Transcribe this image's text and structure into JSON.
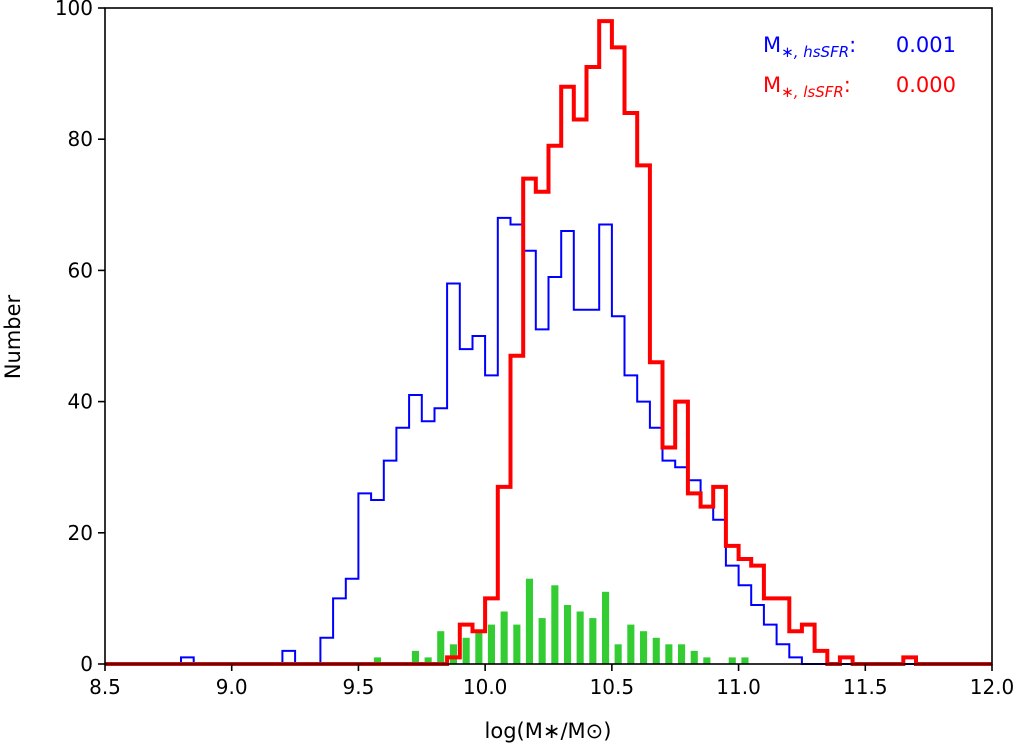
{
  "chart_data": {
    "type": "histogram",
    "xlabel": "log(M∗/M⊙)",
    "ylabel": "Number",
    "xlim": [
      8.5,
      12.0
    ],
    "ylim": [
      0,
      100
    ],
    "xticks": [
      "8.5",
      "9.0",
      "9.5",
      "10.0",
      "10.5",
      "11.0",
      "11.5",
      "12.0"
    ],
    "yticks": [
      "0",
      "20",
      "40",
      "60",
      "80",
      "100"
    ],
    "bin_width": 0.05,
    "grid": false,
    "series": [
      {
        "key": "hsSFR",
        "color": "#0000ff",
        "style": "step",
        "bins": [
          [
            8.8,
            1
          ],
          [
            9.2,
            2
          ],
          [
            9.35,
            4
          ],
          [
            9.4,
            10
          ],
          [
            9.45,
            13
          ],
          [
            9.5,
            26
          ],
          [
            9.55,
            25
          ],
          [
            9.6,
            31
          ],
          [
            9.65,
            36
          ],
          [
            9.7,
            41
          ],
          [
            9.75,
            37
          ],
          [
            9.8,
            39
          ],
          [
            9.85,
            58
          ],
          [
            9.9,
            48
          ],
          [
            9.95,
            50
          ],
          [
            10.0,
            44
          ],
          [
            10.05,
            68
          ],
          [
            10.1,
            67
          ],
          [
            10.15,
            63
          ],
          [
            10.2,
            51
          ],
          [
            10.25,
            59
          ],
          [
            10.3,
            66
          ],
          [
            10.35,
            54
          ],
          [
            10.4,
            54
          ],
          [
            10.45,
            67
          ],
          [
            10.5,
            53
          ],
          [
            10.55,
            44
          ],
          [
            10.6,
            40
          ],
          [
            10.65,
            36
          ],
          [
            10.7,
            31
          ],
          [
            10.75,
            30
          ],
          [
            10.8,
            28
          ],
          [
            10.85,
            24
          ],
          [
            10.9,
            22
          ],
          [
            10.95,
            15
          ],
          [
            11.0,
            12
          ],
          [
            11.05,
            9
          ],
          [
            11.1,
            6
          ],
          [
            11.15,
            3
          ],
          [
            11.2,
            1
          ],
          [
            11.25,
            0
          ]
        ]
      },
      {
        "key": "lsSFR",
        "color": "#ff0000",
        "style": "step-bold",
        "bins": [
          [
            9.85,
            1
          ],
          [
            9.9,
            6
          ],
          [
            9.95,
            5
          ],
          [
            10.0,
            10
          ],
          [
            10.05,
            27
          ],
          [
            10.1,
            47
          ],
          [
            10.15,
            74
          ],
          [
            10.2,
            72
          ],
          [
            10.25,
            79
          ],
          [
            10.3,
            88
          ],
          [
            10.35,
            83
          ],
          [
            10.4,
            91
          ],
          [
            10.45,
            98
          ],
          [
            10.5,
            94
          ],
          [
            10.55,
            84
          ],
          [
            10.6,
            76
          ],
          [
            10.65,
            46
          ],
          [
            10.7,
            33
          ],
          [
            10.75,
            40
          ],
          [
            10.8,
            26
          ],
          [
            10.85,
            24
          ],
          [
            10.9,
            27
          ],
          [
            10.95,
            18
          ],
          [
            11.0,
            16
          ],
          [
            11.05,
            15
          ],
          [
            11.1,
            10
          ],
          [
            11.15,
            10
          ],
          [
            11.2,
            5
          ],
          [
            11.25,
            6
          ],
          [
            11.3,
            2
          ],
          [
            11.35,
            0
          ],
          [
            11.4,
            1
          ],
          [
            11.45,
            0
          ],
          [
            11.65,
            1
          ],
          [
            11.7,
            0
          ]
        ]
      },
      {
        "key": "difference",
        "color": "#33cc33",
        "style": "bar",
        "bins": [
          [
            9.55,
            1
          ],
          [
            9.7,
            2
          ],
          [
            9.75,
            1
          ],
          [
            9.8,
            5
          ],
          [
            9.85,
            3
          ],
          [
            9.9,
            4
          ],
          [
            9.95,
            5
          ],
          [
            10.0,
            6
          ],
          [
            10.05,
            8
          ],
          [
            10.1,
            6
          ],
          [
            10.15,
            13
          ],
          [
            10.2,
            7
          ],
          [
            10.25,
            12
          ],
          [
            10.3,
            9
          ],
          [
            10.35,
            8
          ],
          [
            10.4,
            7
          ],
          [
            10.45,
            11
          ],
          [
            10.5,
            3
          ],
          [
            10.55,
            6
          ],
          [
            10.6,
            5
          ],
          [
            10.65,
            4
          ],
          [
            10.7,
            3
          ],
          [
            10.75,
            3
          ],
          [
            10.8,
            2
          ],
          [
            10.85,
            1
          ],
          [
            10.95,
            1
          ],
          [
            11.0,
            1
          ]
        ]
      }
    ],
    "annotations": [
      {
        "key": "hsSFR",
        "label_main": "M",
        "label_sub": "∗, hsSFR",
        "label_sep": ":",
        "value": "0.001",
        "color": "#0000ff"
      },
      {
        "key": "lsSFR",
        "label_main": "M",
        "label_sub": "∗, lsSFR",
        "label_sep": ":",
        "value": "0.000",
        "color": "#ff0000"
      }
    ]
  }
}
